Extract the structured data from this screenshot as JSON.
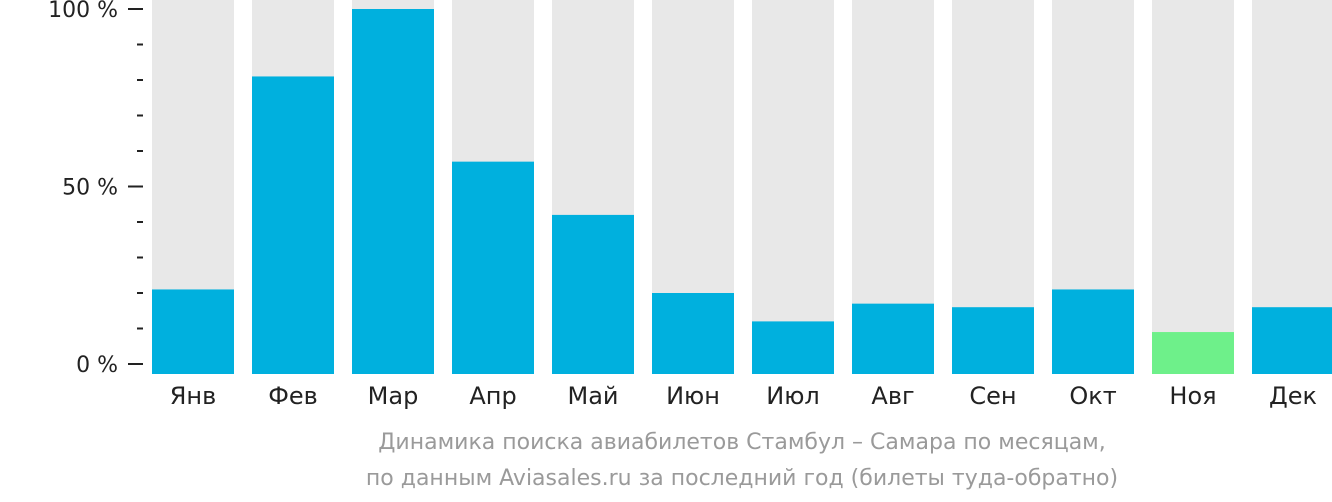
{
  "chart_data": {
    "type": "bar",
    "categories": [
      "Янв",
      "Фев",
      "Мар",
      "Апр",
      "Май",
      "Июн",
      "Июл",
      "Авг",
      "Сен",
      "Окт",
      "Ноя",
      "Дек"
    ],
    "values": [
      21,
      81,
      100,
      57,
      42,
      20,
      12,
      17,
      16,
      21,
      9,
      16
    ],
    "ylim": [
      0,
      100
    ],
    "yticks": [
      "0 %",
      "50 %",
      "100 %"
    ],
    "highlight_index": 10,
    "colors": {
      "bar": "#00b0de",
      "highlight": "#6ef08a",
      "background_bar": "#e8e8e8",
      "axis": "#222222"
    }
  },
  "caption": {
    "line1": "Динамика поиска авиабилетов Стамбул – Самара по месяцам,",
    "line2": "по данным Aviasales.ru за последний год (билеты туда-обратно)"
  }
}
